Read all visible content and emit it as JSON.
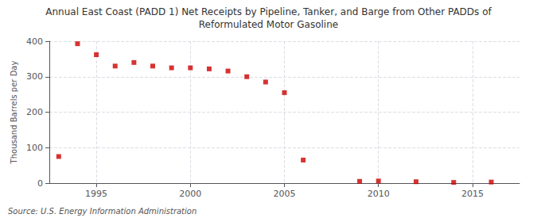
{
  "chart_data": {
    "type": "scatter",
    "title": "Annual East Coast (PADD 1) Net Receipts by Pipeline, Tanker, and Barge from Other PADDs of",
    "subtitle": "Reformulated Motor Gasoline",
    "ylabel": "Thousand Barrels per Day",
    "source": "Source: U.S. Energy Information Administration",
    "x": [
      1993,
      1994,
      1995,
      1996,
      1997,
      1998,
      1999,
      2000,
      2001,
      2002,
      2003,
      2004,
      2005,
      2006,
      2009,
      2010,
      2012,
      2014,
      2016
    ],
    "values": [
      75,
      393,
      362,
      330,
      340,
      330,
      325,
      325,
      322,
      316,
      300,
      285,
      255,
      65,
      5,
      6,
      4,
      2,
      3
    ],
    "color": "#cc0000",
    "marker": "square",
    "xlim": [
      1992.5,
      2017.5
    ],
    "ylim": [
      0,
      400
    ],
    "xticks": [
      1995,
      2000,
      2005,
      2010,
      2015
    ],
    "yticks": [
      0,
      100,
      200,
      300,
      400
    ],
    "grid": true
  }
}
